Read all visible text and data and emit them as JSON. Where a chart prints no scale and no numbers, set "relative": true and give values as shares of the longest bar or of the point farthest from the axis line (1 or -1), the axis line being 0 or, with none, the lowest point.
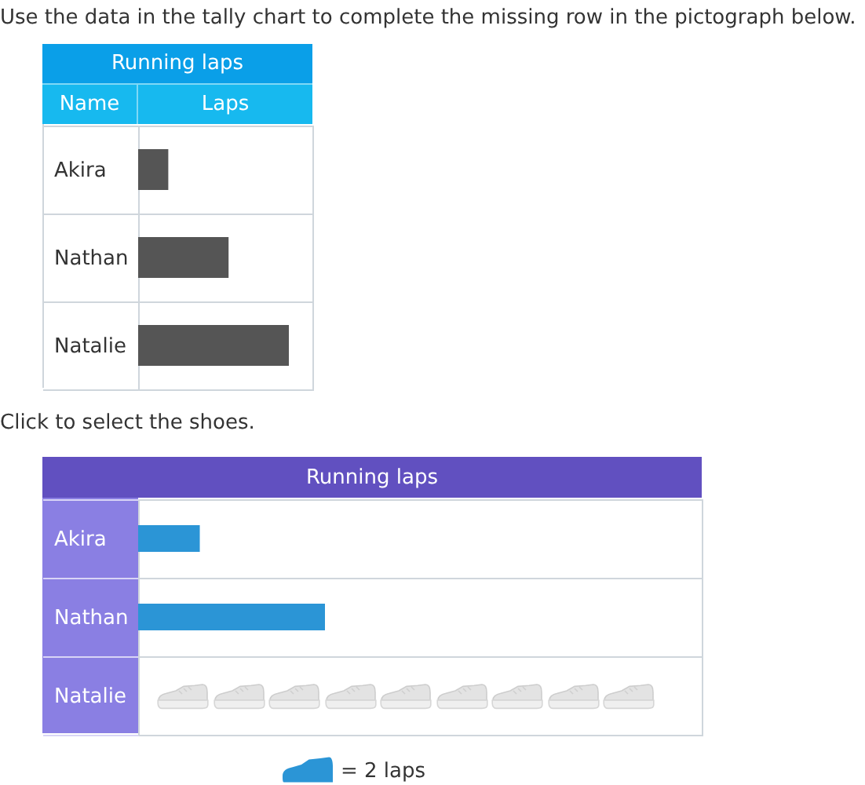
{
  "chart_data": [
    {
      "type": "bar",
      "title": "Running laps",
      "xlabel": "Laps",
      "ylabel": "Name",
      "categories": [
        "Akira",
        "Nathan",
        "Natalie"
      ],
      "values": [
        0.2,
        0.6,
        1
      ],
      "color": "#555555",
      "orientation": "horizontal",
      "relative": true,
      "grid": "y",
      "annotations": [
        "Use the data in the tally chart to complete the missing row in the pictograph below."
      ]
    },
    {
      "type": "bar",
      "title": "Running laps",
      "categories": [
        "Akira",
        "Nathan",
        "Natalie"
      ],
      "series": [
        {
          "name": "= 2 laps",
          "color": "#2b95d6",
          "values": [
            0.33,
            1,
            null
          ]
        }
      ],
      "orientation": "horizontal",
      "relative": true,
      "grid": "y",
      "legend": "bottom",
      "annotations": [
        "Click to select the shoes."
      ]
    }
  ]
}
